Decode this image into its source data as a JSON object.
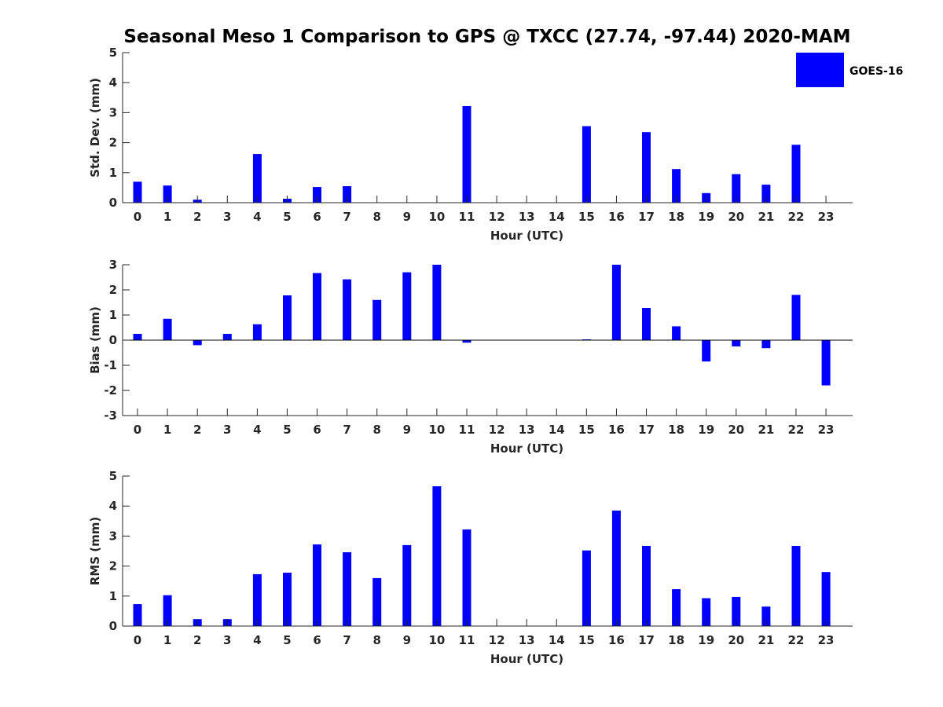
{
  "figure_title": "Seasonal Meso 1 Comparison to GPS @ TXCC (27.74, -97.44) 2020-MAM",
  "legend": {
    "label": "GOES-16",
    "color": "#0000ff",
    "placement": "top-right"
  },
  "chart_data": [
    {
      "type": "bar",
      "name": "std-dev",
      "categories": [
        "0",
        "1",
        "2",
        "3",
        "4",
        "5",
        "6",
        "7",
        "8",
        "9",
        "10",
        "11",
        "12",
        "13",
        "14",
        "15",
        "16",
        "17",
        "18",
        "19",
        "20",
        "21",
        "22",
        "23"
      ],
      "values": [
        0.7,
        0.57,
        0.1,
        0,
        1.62,
        0.13,
        0.52,
        0.55,
        0,
        0,
        0,
        3.22,
        0,
        0,
        0,
        2.55,
        0,
        2.35,
        1.12,
        0.32,
        0.95,
        0.6,
        1.93,
        0
      ],
      "xlabel": "Hour (UTC)",
      "ylabel": "Std. Dev. (mm)",
      "ylim": [
        0,
        5
      ],
      "yticks": [
        0,
        1,
        2,
        3,
        4,
        5
      ],
      "color": "#0000ff",
      "grid": false
    },
    {
      "type": "bar",
      "name": "bias",
      "categories": [
        "0",
        "1",
        "2",
        "3",
        "4",
        "5",
        "6",
        "7",
        "8",
        "9",
        "10",
        "11",
        "12",
        "13",
        "14",
        "15",
        "16",
        "17",
        "18",
        "19",
        "20",
        "21",
        "22",
        "23"
      ],
      "values": [
        0.25,
        0.85,
        -0.2,
        0.25,
        0.63,
        1.78,
        2.67,
        2.42,
        1.6,
        2.7,
        3.0,
        -0.1,
        0,
        0,
        0,
        0.03,
        3.0,
        1.28,
        0.55,
        -0.85,
        -0.25,
        -0.32,
        1.8,
        -1.8
      ],
      "xlabel": "Hour (UTC)",
      "ylabel": "Bias (mm)",
      "ylim": [
        -3,
        3
      ],
      "yticks": [
        -3,
        -2,
        -1,
        0,
        1,
        2,
        3
      ],
      "color": "#0000ff",
      "grid": false
    },
    {
      "type": "bar",
      "name": "rms",
      "categories": [
        "0",
        "1",
        "2",
        "3",
        "4",
        "5",
        "6",
        "7",
        "8",
        "9",
        "10",
        "11",
        "12",
        "13",
        "14",
        "15",
        "16",
        "17",
        "18",
        "19",
        "20",
        "21",
        "22",
        "23"
      ],
      "values": [
        0.73,
        1.03,
        0.23,
        0.23,
        1.73,
        1.78,
        2.72,
        2.46,
        1.6,
        2.7,
        4.66,
        3.22,
        0,
        0,
        0,
        2.52,
        3.85,
        2.67,
        1.23,
        0.93,
        0.97,
        0.65,
        2.67,
        1.8
      ],
      "xlabel": "Hour (UTC)",
      "ylabel": "RMS (mm)",
      "ylim": [
        0,
        5
      ],
      "yticks": [
        0,
        1,
        2,
        3,
        4,
        5
      ],
      "color": "#0000ff",
      "grid": false
    }
  ]
}
